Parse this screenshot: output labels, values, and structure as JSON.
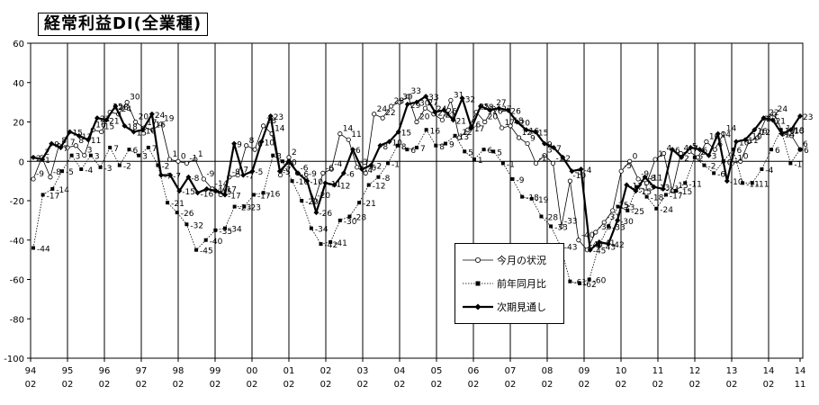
{
  "chart_data": {
    "type": "line",
    "title": "経常利益DI(全業種)",
    "ylim": [
      -100,
      60
    ],
    "yticks": [
      60,
      40,
      20,
      0,
      -20,
      -40,
      -60,
      -80,
      -100
    ],
    "x_tick_years": [
      "94",
      "95",
      "96",
      "97",
      "98",
      "99",
      "00",
      "01",
      "02",
      "03",
      "04",
      "05",
      "06",
      "07",
      "08",
      "09",
      "10",
      "11",
      "12",
      "13",
      "14",
      "14"
    ],
    "x_tick_months": [
      "02",
      "02",
      "02",
      "02",
      "02",
      "02",
      "02",
      "02",
      "02",
      "02",
      "02",
      "02",
      "02",
      "02",
      "02",
      "02",
      "02",
      "02",
      "02",
      "02",
      "02",
      "11"
    ],
    "series": [
      {
        "name": "今月の状況",
        "values": [
          -9,
          2,
          -8,
          8,
          7,
          8,
          3,
          16,
          15,
          25,
          24,
          30,
          20,
          17,
          16,
          19,
          1,
          0,
          -1,
          1,
          -9,
          -14,
          -17,
          -8,
          -7,
          8,
          6,
          18,
          14,
          -7,
          2,
          -6,
          -9,
          -20,
          -6,
          -4,
          14,
          11,
          -3,
          -6,
          24,
          22,
          28,
          30,
          33,
          20,
          27,
          24,
          21,
          31,
          12,
          16,
          25,
          20,
          27,
          17,
          18,
          12,
          9,
          -1,
          3,
          -1,
          -33,
          -10,
          -40,
          -45,
          -36,
          -31,
          -25,
          -5,
          0,
          -9,
          -11,
          1,
          4,
          -15,
          4,
          5,
          2,
          10,
          6,
          14,
          -1,
          0,
          10,
          12,
          22,
          24,
          14,
          13,
          6
        ],
        "style": "thin-open-circle"
      },
      {
        "name": "前年同月比",
        "values": [
          -44,
          -17,
          -14,
          -5,
          3,
          -4,
          3,
          -3,
          7,
          -2,
          6,
          3,
          7,
          -2,
          -21,
          -26,
          -32,
          -45,
          -40,
          -35,
          -34,
          -23,
          -23,
          -17,
          -16,
          3,
          0,
          -10,
          -20,
          -34,
          -42,
          -41,
          -30,
          -28,
          -21,
          -12,
          -8,
          -1,
          8,
          6,
          7,
          16,
          8,
          9,
          13,
          5,
          1,
          6,
          5,
          -1,
          -9,
          -18,
          -19,
          -28,
          -33,
          -43,
          -61,
          -62,
          -60,
          -43,
          -33,
          -23,
          -25,
          -13,
          -18,
          -24,
          -17,
          -15,
          -11,
          2,
          -2,
          -6,
          0,
          6,
          -11,
          -11,
          -4,
          6,
          16,
          -1,
          6
        ],
        "style": "thin-dotted-square"
      },
      {
        "name": "次期見通し",
        "values": [
          2,
          1,
          9,
          7,
          15,
          13,
          11,
          22,
          21,
          28,
          18,
          15,
          16,
          24,
          -7,
          -7,
          -15,
          -8,
          -16,
          -14,
          -15,
          -17,
          9,
          -7,
          -5,
          10,
          23,
          -5,
          0,
          -6,
          -10,
          -26,
          -11,
          -12,
          -6,
          6,
          -4,
          -2,
          8,
          10,
          15,
          29,
          30,
          33,
          25,
          26,
          21,
          32,
          17,
          28,
          26,
          27,
          26,
          20,
          16,
          15,
          9,
          7,
          2,
          -5,
          -4,
          -45,
          -41,
          -42,
          -30,
          -12,
          -15,
          -8,
          -13,
          -14,
          6,
          2,
          7,
          6,
          3,
          14,
          -10,
          10,
          11,
          16,
          22,
          21,
          14,
          16,
          23
        ],
        "style": "bold-diamond"
      }
    ],
    "point_labels": {
      "今月の状況": [
        "-9",
        "2",
        "-8",
        "8",
        "7",
        "8",
        "3",
        "16",
        "15",
        "25",
        "24",
        "30",
        "20",
        "17",
        "16",
        "19",
        "1",
        "0",
        "-1",
        "1",
        "-9",
        "-14",
        "-17",
        "-8",
        "-7",
        "8",
        "6",
        "18",
        "14",
        "-7",
        "2",
        "-6",
        "-9",
        "-20",
        "-6",
        "-4",
        "14",
        "11",
        "-3",
        "-6",
        "24",
        "22",
        "28",
        "30",
        "33",
        "20",
        "27",
        "24",
        "21",
        "31",
        "12",
        "16",
        "25",
        "20",
        "27",
        "17",
        "18",
        "12",
        "9",
        "-1",
        "3",
        "-1",
        "-33",
        "-10",
        "-40",
        "-45",
        "-36",
        "-31",
        "-25",
        "-5",
        "0",
        "-9",
        "-11",
        "1",
        "4",
        "-15",
        "4",
        "5",
        "2",
        "10",
        "6",
        "14",
        "-1",
        "0",
        "10",
        "12",
        "22",
        "24",
        "14",
        "13",
        "6"
      ],
      "前年同月比": [
        "-44",
        "-17",
        "-14",
        "-5",
        "3",
        "-4",
        "3",
        "-3",
        "7",
        "-2",
        "6",
        "3",
        "7",
        "-2",
        "-21",
        "-26",
        "-32",
        "-45",
        "-40",
        "-35",
        "-34",
        "-23",
        "-23",
        "-17",
        "-16",
        "3",
        "0",
        "-10",
        "-20",
        "-34",
        "-42",
        "-41",
        "-30",
        "-28",
        "-21",
        "-12",
        "-8",
        "-1",
        "8",
        "6",
        "7",
        "16",
        "8",
        "9",
        "13",
        "5",
        "1",
        "6",
        "5",
        "-1",
        "-9",
        "-18",
        "-19",
        "-28",
        "-33",
        "-43",
        "-61",
        "-62",
        "-60",
        "-43",
        "-33",
        "-23",
        "-25",
        "-13",
        "-18",
        "-24",
        "-17",
        "-15",
        "-11",
        "2",
        "-2",
        "-6",
        "0",
        "6",
        "-11",
        "-11",
        "-4",
        "6",
        "16",
        "-1",
        "6"
      ],
      "次期見通し": [
        "2",
        "1",
        "9",
        "7",
        "15",
        "13",
        "11",
        "22",
        "21",
        "28",
        "18",
        "15",
        "16",
        "24",
        "-7",
        "-7",
        "-15",
        "-8",
        "-16",
        "-14",
        "-15",
        "-17",
        "9",
        "-7",
        "-5",
        "10",
        "23",
        "-5",
        "0",
        "-6",
        "-10",
        "-26",
        "-11",
        "-12",
        "-6",
        "6",
        "-4",
        "-2",
        "8",
        "10",
        "15",
        "29",
        "30",
        "33",
        "25",
        "26",
        "21",
        "32",
        "17",
        "28",
        "26",
        "27",
        "26",
        "20",
        "16",
        "15",
        "9",
        "7",
        "2",
        "-5",
        "-4",
        "-45",
        "-41",
        "-42",
        "-30",
        "-12",
        "-15",
        "-8",
        "-13",
        "-14",
        "6",
        "2",
        "7",
        "6",
        "3",
        "14",
        "-10",
        "10",
        "11",
        "16",
        "22",
        "21",
        "14",
        "16",
        "23"
      ]
    },
    "legend": [
      "今月の状況",
      "前年同月比",
      "次期見通し"
    ],
    "legend_position": "center-right",
    "grid": "vertical-year-lines"
  }
}
